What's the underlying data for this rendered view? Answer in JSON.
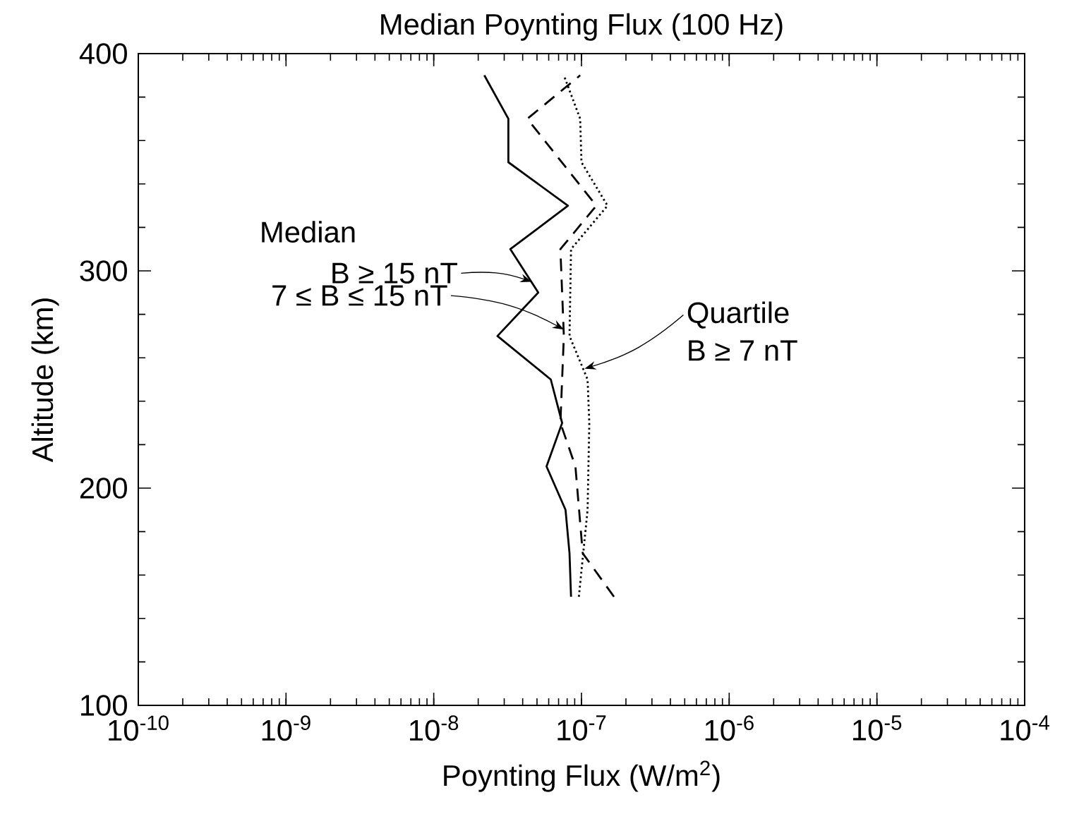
{
  "chart_data": {
    "type": "line",
    "title": "Median Poynting Flux (100 Hz)",
    "xlabel": "Poynting Flux (W/m$^{2}$)",
    "ylabel": "Altitude (km)",
    "log": "x",
    "xlim": [
      1e-10,
      0.0001
    ],
    "ylim": [
      100,
      400
    ],
    "xticks": [
      {
        "value": 1e-10,
        "label": "10$^{-10}$"
      },
      {
        "value": 1e-09,
        "label": "10$^{-9}$"
      },
      {
        "value": 1e-08,
        "label": "10$^{-8}$"
      },
      {
        "value": 1e-07,
        "label": "10$^{-7}$"
      },
      {
        "value": 1e-06,
        "label": "10$^{-6}$"
      },
      {
        "value": 1e-05,
        "label": "10$^{-5}$"
      },
      {
        "value": 0.0001,
        "label": "10$^{-4}$"
      }
    ],
    "yticks": [
      100,
      200,
      300,
      400
    ],
    "grid": false,
    "marker": "none",
    "series": [
      {
        "color": "#000000",
        "line_style": "solid",
        "x": [
          8.5e-08,
          8.3e-08,
          7.8e-08,
          5.8e-08,
          7.4e-08,
          6.2e-08,
          2.7e-08,
          5.1e-08,
          3.3e-08,
          8.1e-08,
          3.2e-08,
          3.2e-08,
          2.2e-08
        ],
        "values": [
          150,
          170,
          190,
          210,
          230,
          250,
          270,
          290,
          310,
          330,
          350,
          370,
          390
        ]
      },
      {
        "color": "#000000",
        "line_style": "dashed",
        "x": [
          1.66e-07,
          1.02e-07,
          9.1e-08,
          7.2e-08,
          7.6e-08,
          7.2e-08,
          1.26e-07,
          4.3e-08,
          9.8e-08
        ],
        "values": [
          150,
          170,
          210,
          230,
          270,
          310,
          330,
          370,
          390
        ]
      },
      {
        "color": "#000000",
        "line_style": "dotted",
        "x": [
          9.6e-08,
          1.1e-07,
          1.13e-07,
          1.1e-07,
          8.3e-08,
          8.5e-08,
          1.5e-07,
          1e-07,
          9.8e-08,
          7.6e-08
        ],
        "values": [
          150,
          190,
          230,
          250,
          270,
          310,
          330,
          350,
          370,
          390
        ]
      }
    ],
    "annotations": [
      "Median",
      {
        "text": "B ≥ 15 nT",
        "x": 4.6e-08,
        "y": 295
      },
      {
        "text": "7 ≤ B ≤ 15 nT",
        "x": 7.6e-08,
        "y": 273
      },
      {
        "text": "Quartile",
        "x": 1.05e-07,
        "y": 255
      },
      "B ≥ 7 nT"
    ]
  }
}
